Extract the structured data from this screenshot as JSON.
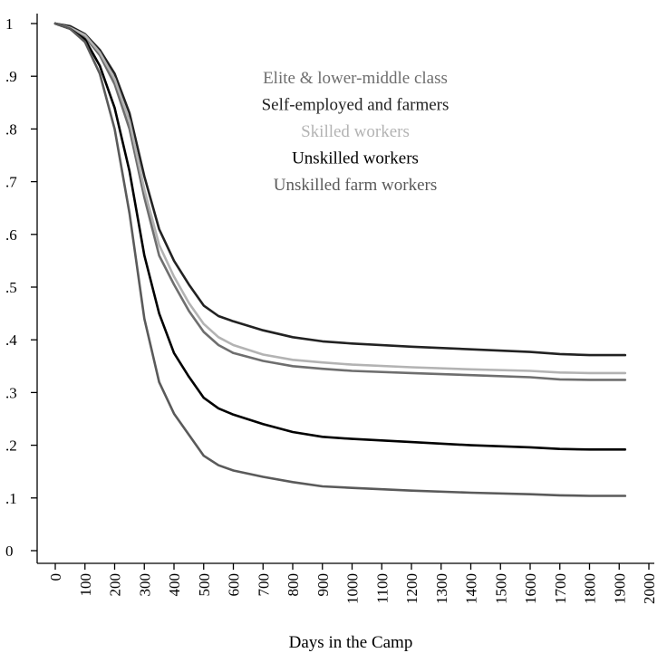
{
  "chart_data": {
    "type": "line",
    "title": "",
    "xlabel": "Days in the Camp",
    "ylabel": "",
    "xlim": [
      0,
      2000
    ],
    "ylim": [
      0,
      1
    ],
    "xticks": [
      0,
      100,
      200,
      300,
      400,
      500,
      600,
      700,
      800,
      900,
      1000,
      1100,
      1200,
      1300,
      1400,
      1500,
      1600,
      1700,
      1800,
      1900,
      2000
    ],
    "xtick_labels": [
      "0",
      "100",
      "200",
      "300",
      "400",
      "500",
      "600",
      "700",
      "800",
      "900",
      "1000",
      "1100",
      "1200",
      "1300",
      "1400",
      "1500",
      "1600",
      "1700",
      "1800",
      "1900",
      "2000"
    ],
    "yticks": [
      0,
      0.1,
      0.2,
      0.3,
      0.4,
      0.5,
      0.6,
      0.7,
      0.8,
      0.9,
      1
    ],
    "ytick_labels": [
      "0",
      ".1",
      ".2",
      ".3",
      ".4",
      ".5",
      ".6",
      ".7",
      ".8",
      ".9",
      "1"
    ],
    "grid": false,
    "legend_position": "top-center",
    "series": [
      {
        "name": "Elite & lower-middle class",
        "color": "#6e6e6e",
        "x": [
          0,
          50,
          100,
          150,
          200,
          250,
          300,
          350,
          400,
          450,
          500,
          550,
          600,
          700,
          800,
          900,
          1000,
          1200,
          1400,
          1600,
          1700,
          1800,
          1920
        ],
        "y": [
          1.0,
          0.99,
          0.975,
          0.94,
          0.885,
          0.8,
          0.67,
          0.56,
          0.505,
          0.455,
          0.415,
          0.39,
          0.375,
          0.36,
          0.35,
          0.345,
          0.341,
          0.337,
          0.333,
          0.329,
          0.325,
          0.324,
          0.324
        ]
      },
      {
        "name": "Self-employed and farmers",
        "color": "#222222",
        "x": [
          0,
          50,
          100,
          150,
          200,
          250,
          300,
          350,
          400,
          450,
          500,
          550,
          600,
          700,
          800,
          900,
          1000,
          1200,
          1400,
          1600,
          1700,
          1800,
          1920
        ],
        "y": [
          1.0,
          0.995,
          0.98,
          0.95,
          0.905,
          0.83,
          0.71,
          0.61,
          0.55,
          0.505,
          0.465,
          0.445,
          0.435,
          0.418,
          0.405,
          0.397,
          0.393,
          0.387,
          0.382,
          0.377,
          0.373,
          0.371,
          0.371
        ]
      },
      {
        "name": "Skilled workers",
        "color": "#b3b3b3",
        "x": [
          0,
          50,
          100,
          150,
          200,
          250,
          300,
          350,
          400,
          450,
          500,
          550,
          600,
          700,
          800,
          900,
          1000,
          1200,
          1400,
          1600,
          1700,
          1800,
          1920
        ],
        "y": [
          1.0,
          0.992,
          0.978,
          0.945,
          0.895,
          0.815,
          0.685,
          0.58,
          0.52,
          0.47,
          0.43,
          0.405,
          0.39,
          0.372,
          0.362,
          0.357,
          0.353,
          0.348,
          0.344,
          0.341,
          0.338,
          0.337,
          0.337
        ]
      },
      {
        "name": "Unskilled workers",
        "color": "#000000",
        "x": [
          0,
          50,
          100,
          150,
          200,
          250,
          300,
          350,
          400,
          450,
          500,
          550,
          600,
          700,
          800,
          900,
          1000,
          1200,
          1400,
          1600,
          1700,
          1800,
          1920
        ],
        "y": [
          1.0,
          0.99,
          0.97,
          0.92,
          0.84,
          0.72,
          0.56,
          0.45,
          0.375,
          0.33,
          0.29,
          0.27,
          0.258,
          0.24,
          0.225,
          0.216,
          0.212,
          0.206,
          0.2,
          0.196,
          0.193,
          0.192,
          0.192
        ]
      },
      {
        "name": "Unskilled farm workers",
        "color": "#5a5a5a",
        "x": [
          0,
          50,
          100,
          150,
          200,
          250,
          300,
          350,
          400,
          450,
          500,
          550,
          600,
          700,
          800,
          900,
          1000,
          1200,
          1400,
          1600,
          1700,
          1800,
          1920
        ],
        "y": [
          1.0,
          0.99,
          0.965,
          0.905,
          0.8,
          0.64,
          0.44,
          0.32,
          0.26,
          0.22,
          0.18,
          0.162,
          0.152,
          0.14,
          0.13,
          0.122,
          0.119,
          0.114,
          0.11,
          0.107,
          0.105,
          0.104,
          0.104
        ]
      }
    ]
  }
}
